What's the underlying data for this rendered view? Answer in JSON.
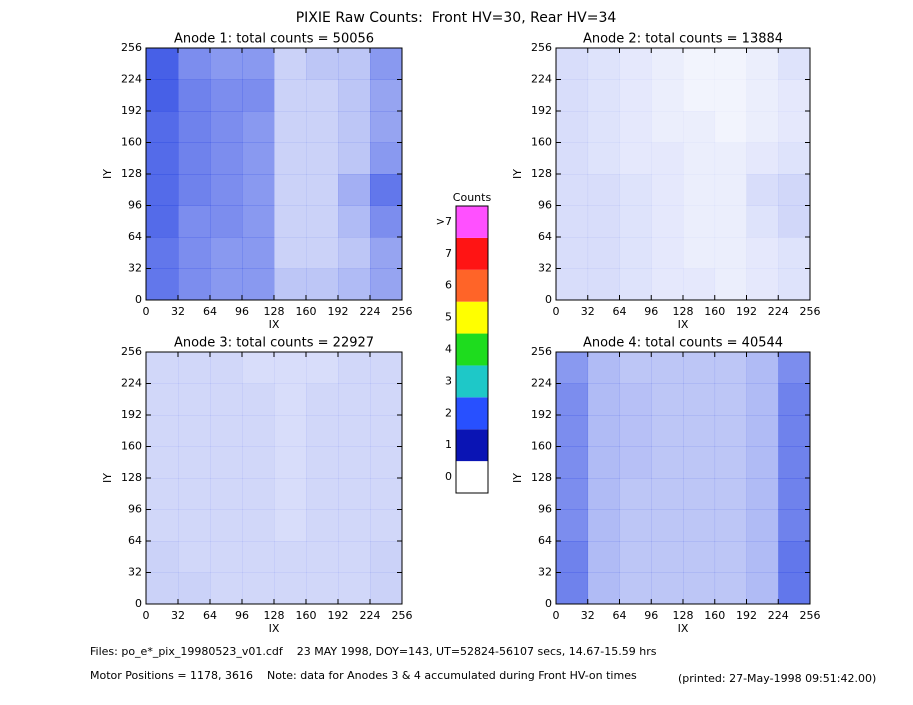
{
  "title": "PIXIE Raw Counts:  Front HV=30, Rear HV=34",
  "colorbar": {
    "title": "Counts",
    "labels": [
      0,
      1,
      2,
      3,
      4,
      5,
      6,
      7,
      ">7"
    ],
    "colors": [
      "#ffffff",
      "#0a14b4",
      "#2850ff",
      "#1ec8c8",
      "#1edc1e",
      "#ffff00",
      "#ff6428",
      "#ff1414",
      "#ff50ff"
    ]
  },
  "footer": {
    "files": "Files: po_e*_pix_19980523_v01.cdf    23 MAY 1998, DOY=143, UT=52824-56107 secs, 14.67-15.59 hrs",
    "motor": "Motor Positions = 1178, 3616    Note: data for Anodes 3 & 4 accumulated during Front HV-on times",
    "printed": "(printed: 27-May-1998 09:51:42.00)"
  },
  "chart_data": [
    {
      "type": "heatmap",
      "title": "Anode 1: total counts = 50056",
      "x_label": "IX",
      "y_label": "IY",
      "color": "#1030e0",
      "xlim": [
        0,
        256
      ],
      "ylim": [
        0,
        256
      ],
      "xticks": [
        0,
        32,
        64,
        96,
        128,
        160,
        192,
        224,
        256
      ],
      "yticks": [
        0,
        32,
        64,
        96,
        128,
        160,
        192,
        224,
        256
      ],
      "z": [
        [
          1.2,
          1.0,
          0.9,
          0.9,
          0.5,
          0.5,
          0.6,
          0.8
        ],
        [
          1.2,
          1.0,
          0.9,
          0.9,
          0.4,
          0.4,
          0.5,
          0.8
        ],
        [
          1.3,
          1.0,
          1.0,
          0.9,
          0.4,
          0.4,
          0.6,
          1.0
        ],
        [
          1.3,
          1.1,
          1.0,
          0.9,
          0.4,
          0.4,
          0.7,
          1.2
        ],
        [
          1.3,
          1.1,
          1.0,
          0.9,
          0.4,
          0.4,
          0.5,
          0.9
        ],
        [
          1.3,
          1.1,
          1.0,
          0.9,
          0.4,
          0.4,
          0.5,
          0.8
        ],
        [
          1.4,
          1.1,
          1.0,
          1.0,
          0.4,
          0.4,
          0.5,
          0.8
        ],
        [
          1.4,
          1.0,
          0.9,
          0.9,
          0.4,
          0.5,
          0.5,
          0.9
        ]
      ]
    },
    {
      "type": "heatmap",
      "title": "Anode 2: total counts = 13884",
      "x_label": "IX",
      "y_label": "IY",
      "color": "#1030e0",
      "xlim": [
        0,
        256
      ],
      "ylim": [
        0,
        256
      ],
      "xticks": [
        0,
        32,
        64,
        96,
        128,
        160,
        192,
        224,
        256
      ],
      "yticks": [
        0,
        32,
        64,
        96,
        128,
        160,
        192,
        224,
        256
      ],
      "z": [
        [
          0.3,
          0.3,
          0.25,
          0.2,
          0.2,
          0.15,
          0.2,
          0.25
        ],
        [
          0.3,
          0.3,
          0.25,
          0.2,
          0.15,
          0.15,
          0.2,
          0.25
        ],
        [
          0.3,
          0.3,
          0.25,
          0.2,
          0.15,
          0.15,
          0.25,
          0.35
        ],
        [
          0.3,
          0.3,
          0.25,
          0.2,
          0.15,
          0.15,
          0.3,
          0.35
        ],
        [
          0.3,
          0.25,
          0.2,
          0.2,
          0.15,
          0.15,
          0.2,
          0.25
        ],
        [
          0.3,
          0.25,
          0.2,
          0.15,
          0.15,
          0.1,
          0.15,
          0.2
        ],
        [
          0.3,
          0.25,
          0.2,
          0.15,
          0.1,
          0.1,
          0.15,
          0.2
        ],
        [
          0.3,
          0.25,
          0.2,
          0.15,
          0.1,
          0.1,
          0.15,
          0.25
        ]
      ]
    },
    {
      "type": "heatmap",
      "title": "Anode 3: total counts = 22927",
      "x_label": "IX",
      "y_label": "IY",
      "color": "#1030e0",
      "xlim": [
        0,
        256
      ],
      "ylim": [
        0,
        256
      ],
      "xticks": [
        0,
        32,
        64,
        96,
        128,
        160,
        192,
        224,
        256
      ],
      "yticks": [
        0,
        32,
        64,
        96,
        128,
        160,
        192,
        224,
        256
      ],
      "z": [
        [
          0.4,
          0.4,
          0.35,
          0.35,
          0.35,
          0.35,
          0.35,
          0.4
        ],
        [
          0.4,
          0.35,
          0.35,
          0.35,
          0.35,
          0.35,
          0.35,
          0.4
        ],
        [
          0.35,
          0.35,
          0.35,
          0.35,
          0.3,
          0.35,
          0.35,
          0.35
        ],
        [
          0.35,
          0.35,
          0.35,
          0.35,
          0.3,
          0.35,
          0.35,
          0.35
        ],
        [
          0.35,
          0.35,
          0.35,
          0.35,
          0.3,
          0.35,
          0.35,
          0.35
        ],
        [
          0.35,
          0.35,
          0.35,
          0.35,
          0.3,
          0.35,
          0.35,
          0.35
        ],
        [
          0.35,
          0.35,
          0.35,
          0.35,
          0.3,
          0.35,
          0.35,
          0.35
        ],
        [
          0.35,
          0.35,
          0.35,
          0.3,
          0.3,
          0.3,
          0.35,
          0.35
        ]
      ]
    },
    {
      "type": "heatmap",
      "title": "Anode 4: total counts = 40544",
      "x_label": "IX",
      "y_label": "IY",
      "color": "#1030e0",
      "xlim": [
        0,
        256
      ],
      "ylim": [
        0,
        256
      ],
      "xticks": [
        0,
        32,
        64,
        96,
        128,
        160,
        192,
        224,
        256
      ],
      "yticks": [
        0,
        32,
        64,
        96,
        128,
        160,
        192,
        224,
        256
      ],
      "z": [
        [
          1.1,
          0.6,
          0.5,
          0.5,
          0.5,
          0.5,
          0.6,
          1.2
        ],
        [
          1.1,
          0.6,
          0.5,
          0.5,
          0.5,
          0.5,
          0.6,
          1.2
        ],
        [
          1.0,
          0.6,
          0.5,
          0.5,
          0.5,
          0.5,
          0.6,
          1.1
        ],
        [
          1.0,
          0.6,
          0.5,
          0.5,
          0.5,
          0.5,
          0.6,
          1.1
        ],
        [
          1.0,
          0.6,
          0.55,
          0.5,
          0.5,
          0.5,
          0.6,
          1.1
        ],
        [
          1.0,
          0.6,
          0.55,
          0.5,
          0.5,
          0.5,
          0.6,
          1.1
        ],
        [
          1.0,
          0.6,
          0.55,
          0.5,
          0.5,
          0.5,
          0.6,
          1.1
        ],
        [
          0.9,
          0.6,
          0.5,
          0.5,
          0.5,
          0.5,
          0.6,
          1.0
        ]
      ]
    }
  ]
}
